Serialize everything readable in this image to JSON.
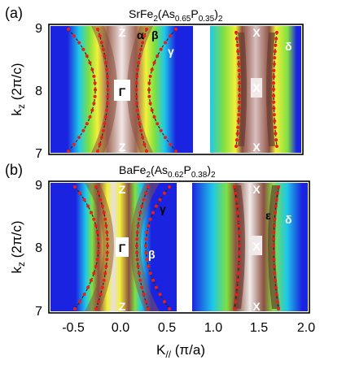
{
  "figure": {
    "panels": [
      {
        "label": "(a)",
        "title_main": "SrFe",
        "title_sub1": "2",
        "title_paren_open": "(As",
        "title_sub2": "0.65",
        "title_mid": "P",
        "title_sub3": "0.35",
        "title_paren_close": ")",
        "title_sub4": "2",
        "left_points": {
          "top": "Z",
          "mid": "Γ",
          "bottom": "Z"
        },
        "right_points": {
          "top": "X",
          "mid": "X",
          "bottom": "X"
        },
        "left_bands": [
          "α",
          "β",
          "γ"
        ],
        "right_bands": [
          "δ"
        ]
      },
      {
        "label": "(b)",
        "title_main": "BaFe",
        "title_sub1": "2",
        "title_paren_open": "(As",
        "title_sub2": "0.62",
        "title_mid": "P",
        "title_sub3": "0.38",
        "title_paren_close": ")",
        "title_sub4": "2",
        "left_points": {
          "top": "Z",
          "mid": "Γ",
          "bottom": "Z"
        },
        "right_points": {
          "top": "X",
          "mid": "X",
          "bottom": "X"
        },
        "left_bands": [
          "γ",
          "β"
        ],
        "right_bands": [
          "ε",
          "δ"
        ]
      }
    ],
    "ylabel_main": "k",
    "ylabel_sub": "z",
    "ylabel_unit": " (2π/c)",
    "xlabel_main": "K",
    "xlabel_sub": "//",
    "xlabel_unit": " (π/a)",
    "y_ticks": [
      "9",
      "8",
      "7"
    ],
    "x_ticks": [
      "-0.5",
      "0.0",
      "0.5",
      "1.0",
      "1.5",
      "2.0"
    ],
    "colors": {
      "blue": "#1a24e0",
      "cyan": "#1ec8e8",
      "green": "#7fe040",
      "yellow": "#f2f03a",
      "brown": "#8c5040",
      "white_core": "#f2eaea",
      "dots": "#e8201a"
    }
  }
}
